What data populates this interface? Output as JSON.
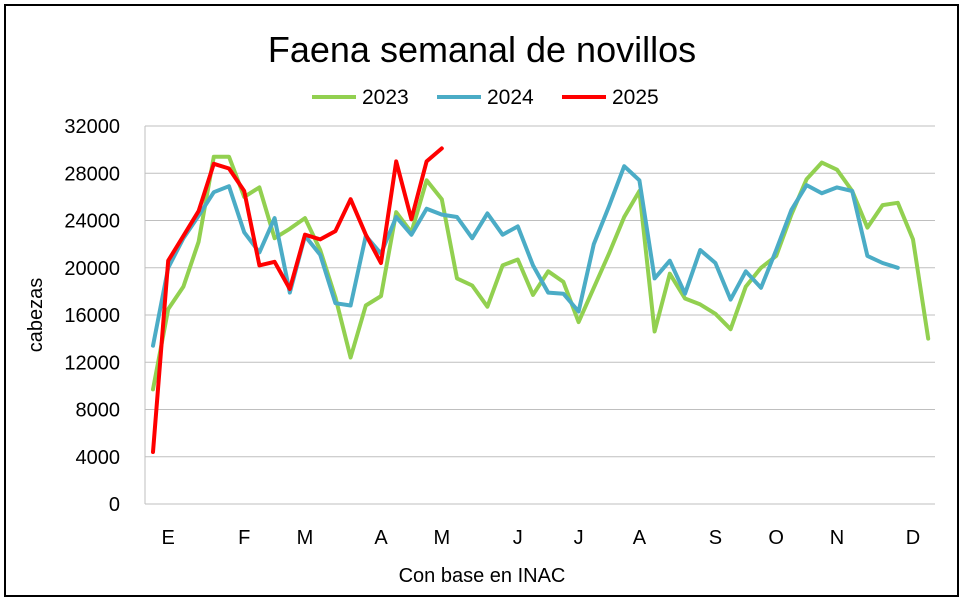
{
  "chart_data": {
    "type": "line",
    "title": "Faena semanal de novillos",
    "xlabel": "Con base en INAC",
    "ylabel": "cabezas",
    "ylim": [
      0,
      32000
    ],
    "yticks": [
      0,
      4000,
      8000,
      12000,
      16000,
      20000,
      24000,
      28000,
      32000
    ],
    "xlim": [
      1,
      53
    ],
    "x_tick_labels": [
      {
        "label": "E",
        "week": 2
      },
      {
        "label": "F",
        "week": 7
      },
      {
        "label": "M",
        "week": 11
      },
      {
        "label": "A",
        "week": 16
      },
      {
        "label": "M",
        "week": 20
      },
      {
        "label": "J",
        "week": 25
      },
      {
        "label": "J",
        "week": 29
      },
      {
        "label": "A",
        "week": 33
      },
      {
        "label": "S",
        "week": 38
      },
      {
        "label": "O",
        "week": 42
      },
      {
        "label": "N",
        "week": 46
      },
      {
        "label": "D",
        "week": 51
      }
    ],
    "grid": true,
    "legend_position": "top",
    "series": [
      {
        "name": "2023",
        "color": "#92D050",
        "values": [
          9700,
          16500,
          18400,
          22200,
          29400,
          29400,
          26000,
          26800,
          22500,
          23300,
          24200,
          21500,
          17500,
          12400,
          16800,
          17600,
          24700,
          23000,
          27400,
          25800,
          19100,
          18500,
          16700,
          20200,
          20700,
          17700,
          19700,
          18800,
          15400,
          18300,
          21200,
          24300,
          26500,
          14600,
          19500,
          17400,
          16900,
          16100,
          14800,
          18400,
          20000,
          21000,
          24500,
          27500,
          28900,
          28300,
          26500,
          23400,
          25300,
          25500,
          22400,
          14000
        ]
      },
      {
        "name": "2024",
        "color": "#4BACC6",
        "values": [
          13400,
          20000,
          22500,
          24400,
          26400,
          26900,
          23000,
          21300,
          24200,
          17900,
          22700,
          21100,
          17000,
          16800,
          22700,
          21200,
          24300,
          22800,
          25000,
          24500,
          24300,
          22500,
          24600,
          22800,
          23500,
          20200,
          17900,
          17800,
          16300,
          22000,
          25200,
          28600,
          27400,
          19100,
          20600,
          17800,
          21500,
          20400,
          17300,
          19700,
          18300,
          21500,
          24900,
          27000,
          26300,
          26800,
          26500,
          21000,
          20400,
          20000
        ]
      },
      {
        "name": "2025",
        "color": "#FF0000",
        "values": [
          4400,
          20600,
          22700,
          24800,
          28800,
          28400,
          26500,
          20200,
          20500,
          18200,
          22800,
          22400,
          23100,
          25800,
          22800,
          20400,
          29000,
          24100,
          29000,
          30100
        ]
      }
    ]
  }
}
